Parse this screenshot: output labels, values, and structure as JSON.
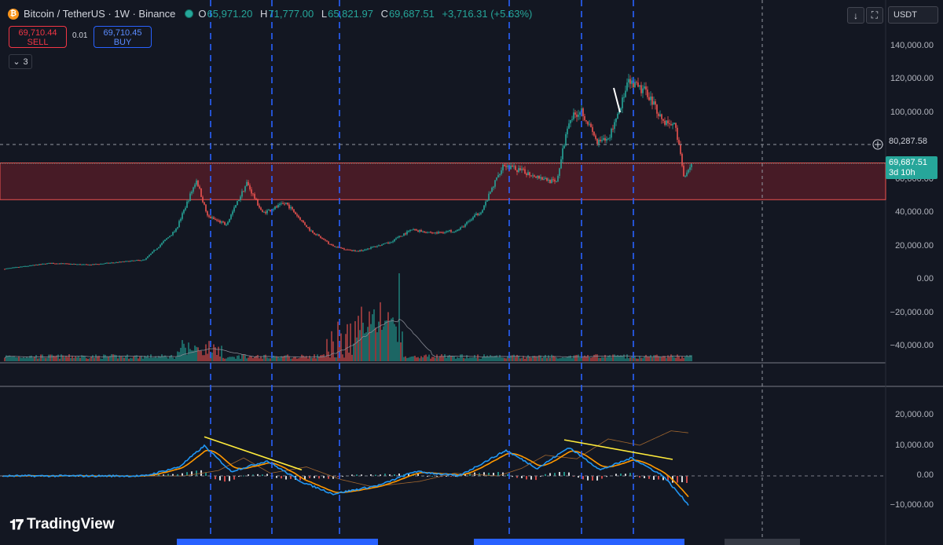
{
  "header": {
    "symbol": "Bitcoin / TetherUS · 1W · Binance",
    "coin_glyph": "₿",
    "open_label": "O",
    "open": "65,971.20",
    "high_label": "H",
    "high": "71,777.00",
    "low_label": "L",
    "low": "65,821.97",
    "close_label": "C",
    "close": "69,687.51",
    "change": "+3,716.31 (+5.63%)"
  },
  "trade": {
    "sell_price": "69,710.44",
    "sell_label": "SELL",
    "spread": "0.01",
    "buy_price": "69,710.45",
    "buy_label": "BUY"
  },
  "indicators_collapsed": {
    "count": "3"
  },
  "toolbar": {
    "currency": "USDT",
    "download_icon": "↓",
    "fullscreen_icon": "⛶",
    "currency_caret": "▾"
  },
  "price_axis": {
    "ticks": [
      "140,000.00",
      "120,000.00",
      "100,000.00",
      "60,000.00",
      "40,000.00",
      "20,000.00",
      "0.00",
      "−20,000.00",
      "−40,000.00"
    ],
    "crosshair_price": "80,287.58",
    "last_price": "69,687.51",
    "countdown": "3d 10h"
  },
  "macd_axis": {
    "ticks": [
      "20,000.00",
      "10,000.00",
      "0.00",
      "−10,000.00"
    ]
  },
  "branding": {
    "name": "TradingView"
  },
  "colors": {
    "up": "#26a69a",
    "down": "#ef5350",
    "zone": "#5a1e28",
    "macd": "#2196f3",
    "signal": "#ff9800",
    "dash": "#2962ff",
    "trend": "#ffeb3b"
  },
  "chart_data": {
    "type": "candlestick",
    "instrument": "Bitcoin / TetherUS",
    "interval": "1W",
    "price_ylim": [
      -45000,
      145000
    ],
    "key_points": [
      {
        "week": 0,
        "price": 6500
      },
      {
        "week": 30,
        "price": 10000
      },
      {
        "week": 55,
        "price": 9000
      },
      {
        "week": 90,
        "price": 12000
      },
      {
        "week": 110,
        "price": 30000
      },
      {
        "week": 123,
        "price": 60000
      },
      {
        "week": 130,
        "price": 38000
      },
      {
        "week": 142,
        "price": 33000
      },
      {
        "week": 155,
        "price": 58000
      },
      {
        "week": 165,
        "price": 40000
      },
      {
        "week": 180,
        "price": 46000
      },
      {
        "week": 195,
        "price": 30000
      },
      {
        "week": 210,
        "price": 20000
      },
      {
        "week": 225,
        "price": 17000
      },
      {
        "week": 245,
        "price": 22000
      },
      {
        "week": 260,
        "price": 30000
      },
      {
        "week": 275,
        "price": 28000
      },
      {
        "week": 290,
        "price": 30000
      },
      {
        "week": 305,
        "price": 42000
      },
      {
        "week": 318,
        "price": 69000
      },
      {
        "week": 330,
        "price": 65000
      },
      {
        "week": 340,
        "price": 62000
      },
      {
        "week": 352,
        "price": 58000
      },
      {
        "week": 360,
        "price": 96000
      },
      {
        "week": 368,
        "price": 102000
      },
      {
        "week": 378,
        "price": 82000
      },
      {
        "week": 385,
        "price": 84000
      },
      {
        "week": 398,
        "price": 118000
      },
      {
        "week": 410,
        "price": 112000
      },
      {
        "week": 420,
        "price": 95000
      },
      {
        "week": 428,
        "price": 92000
      },
      {
        "week": 433,
        "price": 62000
      },
      {
        "week": 438,
        "price": 69687
      }
    ],
    "resistance_zone": [
      48000,
      70000
    ],
    "vertical_markers_week": [
      132,
      171,
      214,
      322,
      368,
      401
    ],
    "macd_ylim": [
      -12000,
      23000
    ],
    "macd_key_points": [
      {
        "week": 0,
        "macd": 0
      },
      {
        "week": 90,
        "macd": 0
      },
      {
        "week": 112,
        "macd": 3000
      },
      {
        "week": 128,
        "macd": 10000
      },
      {
        "week": 145,
        "macd": 1500
      },
      {
        "week": 168,
        "macd": 5000
      },
      {
        "week": 190,
        "macd": -2000
      },
      {
        "week": 210,
        "macd": -6000
      },
      {
        "week": 240,
        "macd": -3000
      },
      {
        "week": 262,
        "macd": 1500
      },
      {
        "week": 290,
        "macd": 0
      },
      {
        "week": 320,
        "macd": 8500
      },
      {
        "week": 340,
        "macd": 2500
      },
      {
        "week": 360,
        "macd": 9500
      },
      {
        "week": 380,
        "macd": 2000
      },
      {
        "week": 400,
        "macd": 6000
      },
      {
        "week": 420,
        "macd": 0
      },
      {
        "week": 436,
        "macd": -9500
      }
    ]
  }
}
